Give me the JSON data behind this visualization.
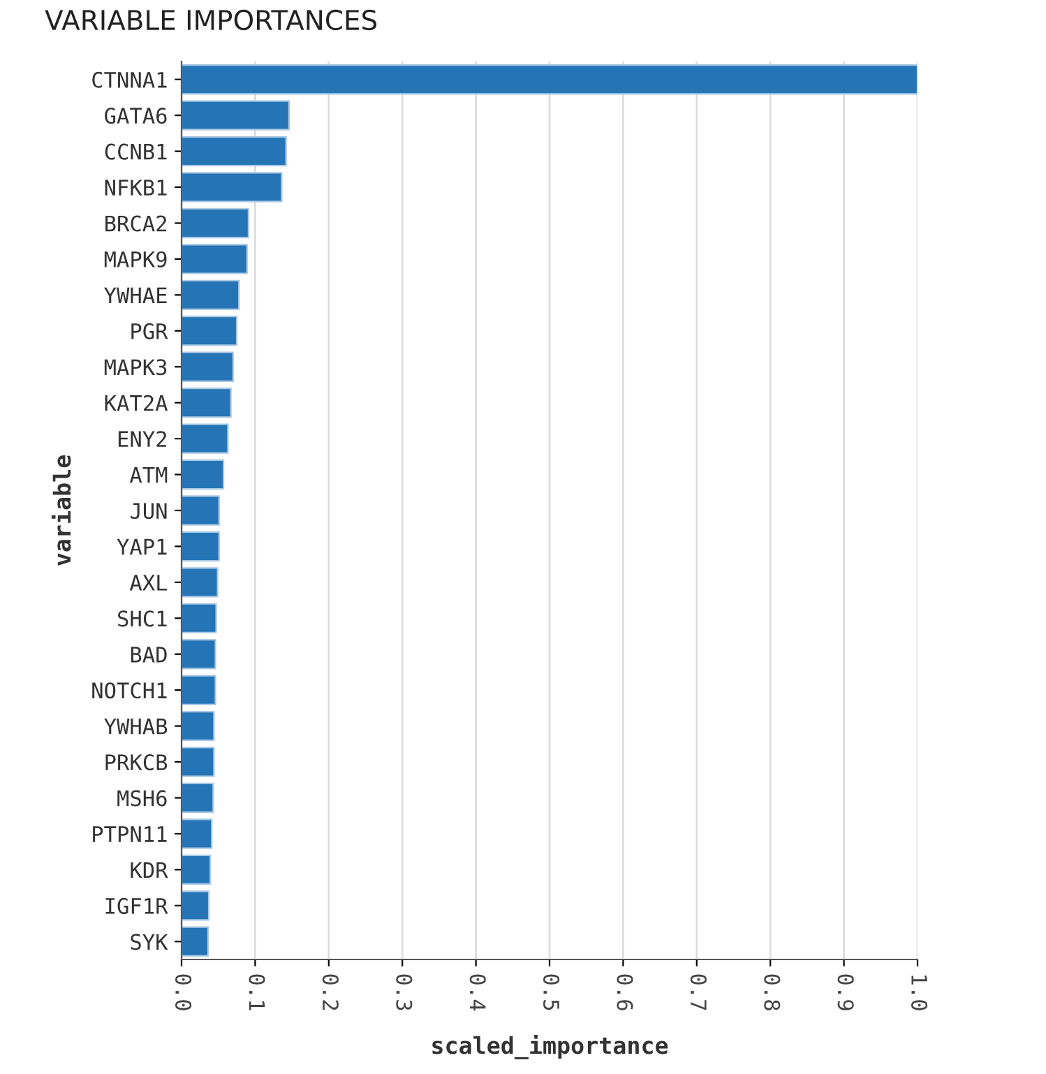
{
  "chart_data": {
    "type": "bar",
    "orientation": "horizontal",
    "title": "VARIABLE IMPORTANCES",
    "xlabel": "scaled_importance",
    "ylabel": "variable",
    "categories": [
      "CTNNA1",
      "GATA6",
      "CCNB1",
      "NFKB1",
      "BRCA2",
      "MAPK9",
      "YWHAE",
      "PGR",
      "MAPK3",
      "KAT2A",
      "ENY2",
      "ATM",
      "JUN",
      "YAP1",
      "AXL",
      "SHC1",
      "BAD",
      "NOTCH1",
      "YWHAB",
      "PRKCB",
      "MSH6",
      "PTPN11",
      "KDR",
      "IGF1R",
      "SYK"
    ],
    "values": [
      1.0,
      0.146,
      0.142,
      0.136,
      0.091,
      0.089,
      0.078,
      0.075,
      0.07,
      0.067,
      0.063,
      0.057,
      0.051,
      0.051,
      0.049,
      0.047,
      0.046,
      0.046,
      0.044,
      0.044,
      0.043,
      0.041,
      0.039,
      0.037,
      0.036
    ],
    "color": "#2474b6",
    "xlim": [
      0,
      1.0
    ],
    "xticks": [
      {
        "value": 0,
        "label": "0.0"
      },
      0.1,
      0.2,
      0.3,
      0.4,
      0.5,
      0.6,
      0.7,
      0.8,
      0.9,
      {
        "value": 1,
        "label": "1.0"
      }
    ],
    "grid": "x"
  }
}
